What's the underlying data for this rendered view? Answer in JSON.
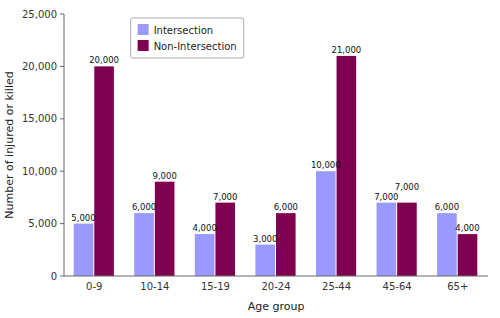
{
  "chart_data": {
    "type": "bar",
    "categories": [
      "0-9",
      "10-14",
      "15-19",
      "20-24",
      "25-44",
      "45-64",
      "65+"
    ],
    "series": [
      {
        "name": "Intersection",
        "color": "#9999ff",
        "values": [
          5000,
          6000,
          4000,
          3000,
          10000,
          7000,
          6000
        ],
        "value_labels": [
          "5,000",
          "6,000",
          "4,000",
          "3,000",
          "10,000",
          "7,000",
          "6,000"
        ]
      },
      {
        "name": "Non-Intersection",
        "color": "#800050",
        "values": [
          20000,
          9000,
          7000,
          6000,
          21000,
          7000,
          4000
        ],
        "value_labels": [
          "20,000",
          "9,000",
          "7,000",
          "6,000",
          "21,000",
          "7,000",
          "4,000"
        ]
      }
    ],
    "xlabel": "Age group",
    "ylabel": "Number of injured or killed",
    "ylim": [
      0,
      25000
    ],
    "yticks": [
      0,
      {
        "value": 5000,
        "label": "5,000"
      },
      {
        "value": 10000,
        "label": "10,000"
      },
      {
        "value": 15000,
        "label": "15,000"
      },
      {
        "value": 20000,
        "label": "20,000"
      },
      {
        "value": 25000,
        "label": "25,000"
      }
    ],
    "data_labels": true,
    "legend": "upper left",
    "grid": false
  }
}
